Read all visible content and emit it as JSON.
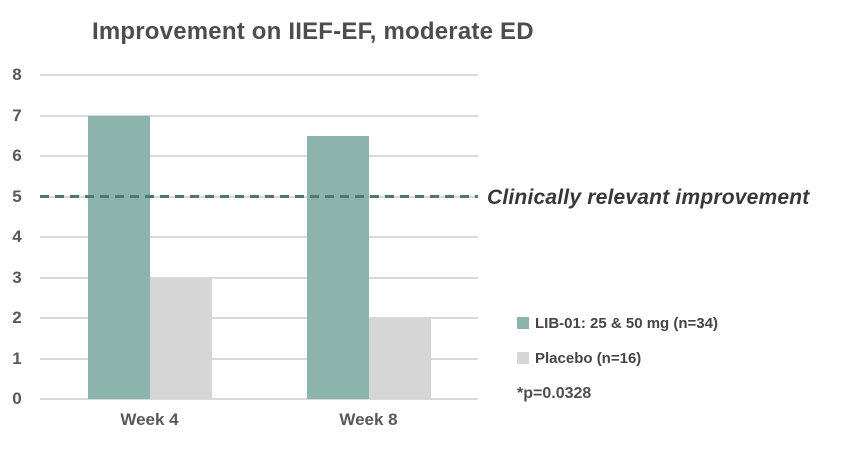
{
  "chart_data": {
    "type": "bar",
    "title": "Improvement on IIEF-EF, moderate ED",
    "categories": [
      "Week 4",
      "Week 8"
    ],
    "series": [
      {
        "name": "LIB-01: 25 & 50 mg (n=34)",
        "color": "#8DB4AC",
        "values": [
          7,
          6.5
        ]
      },
      {
        "name": "Placebo (n=16)",
        "color": "#D6D6D6",
        "values": [
          3,
          2
        ]
      }
    ],
    "ylim": [
      0,
      8
    ],
    "yticks": [
      0,
      1,
      2,
      3,
      4,
      5,
      6,
      7,
      8
    ],
    "grid": true,
    "gridline_color": "#D9D9D9",
    "reference_line": {
      "value": 5,
      "label": "Clinically relevant improvement",
      "color": "#4E796F",
      "style": "dashed"
    },
    "footnote": "*p=0.0328",
    "legend_position": "right-middle",
    "xlabel": "",
    "ylabel": ""
  }
}
